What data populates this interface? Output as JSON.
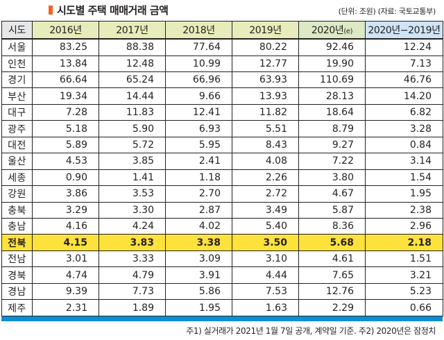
{
  "title": "시도별 주택 매매거래 금액",
  "unit_note": "(단위: 조원) (자료: 국토교통부)",
  "columns": {
    "region": "시도",
    "y2016": "2016년",
    "y2017": "2017년",
    "y2018": "2018년",
    "y2019": "2019년",
    "y2020": "2020년",
    "y2020_mark": "(e)",
    "diff": "2020년−2019년"
  },
  "rows": [
    {
      "region": "서울",
      "v": [
        "83.25",
        "88.38",
        "77.64",
        "80.22",
        "92.46",
        "12.24"
      ]
    },
    {
      "region": "인천",
      "v": [
        "13.84",
        "12.48",
        "10.99",
        "12.77",
        "19.90",
        "7.13"
      ]
    },
    {
      "region": "경기",
      "v": [
        "66.64",
        "65.24",
        "66.96",
        "63.93",
        "110.69",
        "46.76"
      ]
    },
    {
      "region": "부산",
      "v": [
        "19.34",
        "14.44",
        "9.66",
        "13.93",
        "28.13",
        "14.20"
      ]
    },
    {
      "region": "대구",
      "v": [
        "7.28",
        "11.83",
        "12.41",
        "11.82",
        "18.64",
        "6.82"
      ]
    },
    {
      "region": "광주",
      "v": [
        "5.18",
        "5.90",
        "6.93",
        "5.51",
        "8.79",
        "3.28"
      ]
    },
    {
      "region": "대전",
      "v": [
        "5.89",
        "5.72",
        "5.95",
        "8.43",
        "9.27",
        "0.84"
      ]
    },
    {
      "region": "울산",
      "v": [
        "4.53",
        "3.85",
        "2.41",
        "4.08",
        "7.22",
        "3.14"
      ]
    },
    {
      "region": "세종",
      "v": [
        "0.90",
        "1.41",
        "1.18",
        "2.26",
        "3.80",
        "1.54"
      ]
    },
    {
      "region": "강원",
      "v": [
        "3.86",
        "3.53",
        "2.70",
        "2.72",
        "4.67",
        "1.95"
      ]
    },
    {
      "region": "충북",
      "v": [
        "3.29",
        "3.30",
        "2.87",
        "3.49",
        "5.87",
        "2.38"
      ]
    },
    {
      "region": "충남",
      "v": [
        "4.16",
        "4.24",
        "4.02",
        "5.40",
        "8.36",
        "2.96"
      ]
    },
    {
      "region": "전북",
      "v": [
        "4.15",
        "3.83",
        "3.38",
        "3.50",
        "5.68",
        "2.18"
      ]
    },
    {
      "region": "전남",
      "v": [
        "3.01",
        "3.33",
        "3.09",
        "3.10",
        "4.61",
        "1.51"
      ]
    },
    {
      "region": "경북",
      "v": [
        "4.74",
        "4.79",
        "3.91",
        "4.44",
        "7.65",
        "3.21"
      ]
    },
    {
      "region": "경남",
      "v": [
        "9.39",
        "7.73",
        "5.86",
        "7.53",
        "12.76",
        "5.23"
      ]
    },
    {
      "region": "제주",
      "v": [
        "2.31",
        "1.89",
        "1.95",
        "1.63",
        "2.29",
        "0.66"
      ]
    }
  ],
  "highlight_region": "전북",
  "footnote": "주1) 실거래가 2021년 1월 7일 공개, 계약일 기준.  주2) 2020년은 잠정치",
  "colors": {
    "title_marker": "#f26522",
    "header_region": "#e6e7e8",
    "header_year": "#e7ecbb",
    "header_2020": "#dbe9c4",
    "header_diff": "#cfe4f5",
    "highlight_row": "#fce23b",
    "bottom_bar": "#0b8fd6"
  }
}
